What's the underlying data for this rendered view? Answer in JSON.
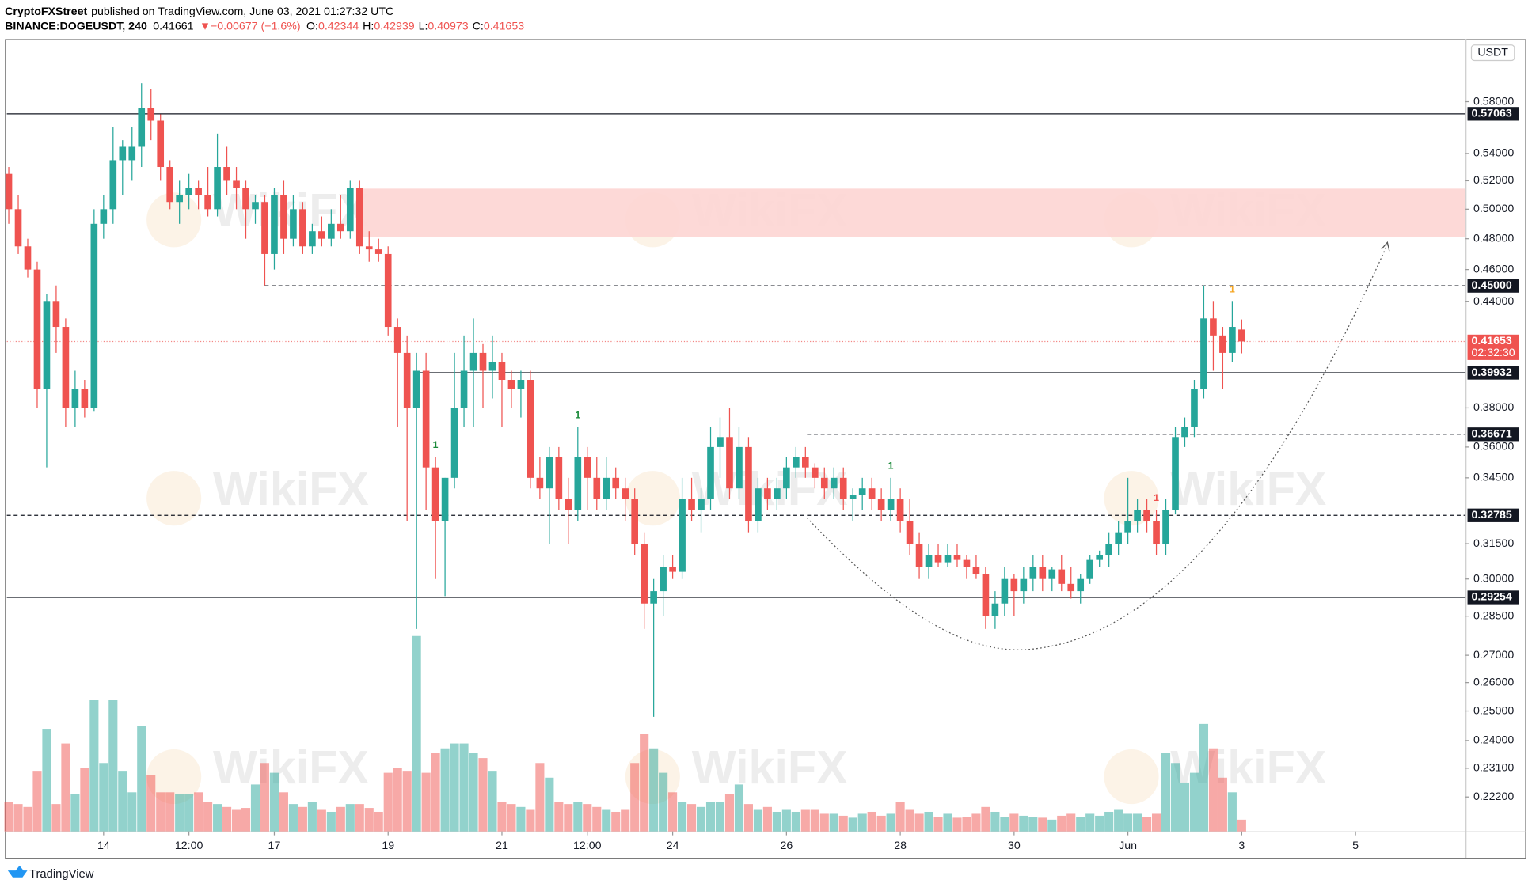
{
  "header": {
    "author": "CryptoFXStreet",
    "published": "published on TradingView.com, June 03, 2021 01:27:32 UTC",
    "symbol": "BINANCE:DOGEUSDT, 240",
    "last": "0.41661",
    "change": "▼−0.00677 (−1.6%)",
    "ohlc": [
      {
        "label": "O:",
        "value": "0.42344"
      },
      {
        "label": "H:",
        "value": "0.42939"
      },
      {
        "label": "L:",
        "value": "0.40973"
      },
      {
        "label": "C:",
        "value": "0.41653"
      }
    ]
  },
  "footer": {
    "brand": "TradingView"
  },
  "watermark": "WikiFX",
  "chart_data": {
    "type": "candlestick",
    "currency": "USDT",
    "log_scale": true,
    "ylim": [
      0.2117,
      0.6307
    ],
    "yticks": [
      {
        "value": 0.58,
        "label": "0.58000"
      },
      {
        "value": 0.54,
        "label": "0.54000"
      },
      {
        "value": 0.52,
        "label": "0.52000"
      },
      {
        "value": 0.5,
        "label": "0.50000"
      },
      {
        "value": 0.48,
        "label": "0.48000"
      },
      {
        "value": 0.46,
        "label": "0.46000"
      },
      {
        "value": 0.44,
        "label": "0.44000"
      },
      {
        "value": 0.38,
        "label": "0.38000"
      },
      {
        "value": 0.36,
        "label": "0.36000"
      },
      {
        "value": 0.345,
        "label": "0.34500"
      },
      {
        "value": 0.315,
        "label": "0.31500"
      },
      {
        "value": 0.3,
        "label": "0.30000"
      },
      {
        "value": 0.285,
        "label": "0.28500"
      },
      {
        "value": 0.27,
        "label": "0.27000"
      },
      {
        "value": 0.26,
        "label": "0.26000"
      },
      {
        "value": 0.25,
        "label": "0.25000"
      },
      {
        "value": 0.24,
        "label": "0.24000"
      },
      {
        "value": 0.231,
        "label": "0.23100"
      },
      {
        "value": 0.222,
        "label": "0.22200"
      }
    ],
    "xlim": [
      -0.2,
      153.6
    ],
    "xticks": [
      {
        "value": 10,
        "label": "14"
      },
      {
        "value": 19,
        "label": "12:00"
      },
      {
        "value": 28,
        "label": "17"
      },
      {
        "value": 40,
        "label": "19"
      },
      {
        "value": 52,
        "label": "21"
      },
      {
        "value": 61,
        "label": "12:00"
      },
      {
        "value": 70,
        "label": "24"
      },
      {
        "value": 82,
        "label": "26"
      },
      {
        "value": 94,
        "label": "28"
      },
      {
        "value": 106,
        "label": "30"
      },
      {
        "value": 118,
        "label": "Jun"
      },
      {
        "value": 130,
        "label": "3"
      },
      {
        "value": 142,
        "label": "5"
      }
    ],
    "up_color": "#26a69a",
    "down_color": "#ef5350",
    "open": [
      0.525,
      0.5,
      0.475,
      0.46,
      0.39,
      0.44,
      0.425,
      0.38,
      0.39,
      0.38,
      0.49,
      0.5,
      0.535,
      0.535,
      0.545,
      0.575,
      0.565,
      0.53,
      0.505,
      0.51,
      0.515,
      0.51,
      0.5,
      0.53,
      0.52,
      0.515,
      0.5,
      0.505,
      0.47,
      0.51,
      0.48,
      0.5,
      0.475,
      0.485,
      0.48,
      0.49,
      0.485,
      0.515,
      0.475,
      0.473,
      0.47,
      0.425,
      0.41,
      0.38,
      0.4,
      0.35,
      0.325,
      0.345,
      0.38,
      0.4,
      0.41,
      0.4,
      0.405,
      0.395,
      0.39,
      0.395,
      0.345,
      0.34,
      0.355,
      0.335,
      0.33,
      0.355,
      0.345,
      0.335,
      0.345,
      0.34,
      0.335,
      0.315,
      0.29,
      0.295,
      0.305,
      0.303,
      0.335,
      0.33,
      0.335,
      0.36,
      0.365,
      0.34,
      0.36,
      0.325,
      0.34,
      0.335,
      0.34,
      0.35,
      0.355,
      0.35,
      0.345,
      0.34,
      0.345,
      0.335,
      0.337,
      0.34,
      0.335,
      0.33,
      0.335,
      0.325,
      0.315,
      0.305,
      0.31,
      0.307,
      0.31,
      0.308,
      0.305,
      0.302,
      0.285,
      0.29,
      0.3,
      0.295,
      0.3,
      0.305,
      0.3,
      0.304,
      0.298,
      0.295,
      0.3,
      0.308,
      0.31,
      0.315,
      0.32,
      0.325,
      0.33,
      0.325,
      0.315,
      0.33,
      0.365,
      0.37,
      0.39,
      0.43,
      0.42,
      0.41,
      0.42344
    ],
    "high": [
      0.53,
      0.51,
      0.48,
      0.465,
      0.445,
      0.45,
      0.43,
      0.4,
      0.395,
      0.5,
      0.51,
      0.56,
      0.55,
      0.56,
      0.595,
      0.59,
      0.57,
      0.535,
      0.52,
      0.525,
      0.52,
      0.53,
      0.555,
      0.545,
      0.53,
      0.52,
      0.51,
      0.51,
      0.515,
      0.52,
      0.51,
      0.505,
      0.49,
      0.495,
      0.5,
      0.51,
      0.52,
      0.52,
      0.485,
      0.48,
      0.475,
      0.43,
      0.42,
      0.41,
      0.41,
      0.355,
      0.345,
      0.41,
      0.42,
      0.43,
      0.415,
      0.42,
      0.41,
      0.4,
      0.4,
      0.4,
      0.355,
      0.36,
      0.36,
      0.345,
      0.37,
      0.36,
      0.355,
      0.355,
      0.35,
      0.345,
      0.34,
      0.32,
      0.3,
      0.31,
      0.31,
      0.345,
      0.345,
      0.34,
      0.37,
      0.375,
      0.38,
      0.37,
      0.365,
      0.345,
      0.345,
      0.345,
      0.355,
      0.36,
      0.36,
      0.352,
      0.35,
      0.35,
      0.35,
      0.34,
      0.345,
      0.345,
      0.34,
      0.345,
      0.34,
      0.335,
      0.32,
      0.315,
      0.315,
      0.315,
      0.315,
      0.31,
      0.31,
      0.305,
      0.295,
      0.305,
      0.302,
      0.305,
      0.31,
      0.31,
      0.305,
      0.31,
      0.305,
      0.302,
      0.31,
      0.312,
      0.32,
      0.325,
      0.345,
      0.335,
      0.335,
      0.33,
      0.335,
      0.37,
      0.375,
      0.395,
      0.45,
      0.44,
      0.425,
      0.44,
      0.42939
    ],
    "low": [
      0.49,
      0.47,
      0.455,
      0.38,
      0.35,
      0.41,
      0.37,
      0.37,
      0.375,
      0.378,
      0.48,
      0.49,
      0.51,
      0.52,
      0.53,
      0.55,
      0.52,
      0.5,
      0.49,
      0.5,
      0.5,
      0.495,
      0.495,
      0.51,
      0.5,
      0.48,
      0.49,
      0.45,
      0.46,
      0.47,
      0.475,
      0.47,
      0.47,
      0.475,
      0.475,
      0.48,
      0.48,
      0.47,
      0.465,
      0.465,
      0.42,
      0.37,
      0.325,
      0.28,
      0.33,
      0.3,
      0.293,
      0.34,
      0.37,
      0.37,
      0.38,
      0.385,
      0.37,
      0.38,
      0.375,
      0.34,
      0.335,
      0.315,
      0.33,
      0.315,
      0.325,
      0.33,
      0.33,
      0.33,
      0.335,
      0.325,
      0.31,
      0.28,
      0.248,
      0.285,
      0.3,
      0.3,
      0.325,
      0.32,
      0.33,
      0.345,
      0.335,
      0.335,
      0.32,
      0.32,
      0.33,
      0.33,
      0.335,
      0.345,
      0.345,
      0.34,
      0.335,
      0.335,
      0.33,
      0.325,
      0.33,
      0.33,
      0.325,
      0.325,
      0.32,
      0.31,
      0.3,
      0.3,
      0.305,
      0.305,
      0.305,
      0.3,
      0.3,
      0.28,
      0.28,
      0.285,
      0.285,
      0.29,
      0.295,
      0.295,
      0.295,
      0.295,
      0.292,
      0.29,
      0.298,
      0.305,
      0.305,
      0.31,
      0.315,
      0.32,
      0.32,
      0.31,
      0.31,
      0.328,
      0.36,
      0.365,
      0.385,
      0.4,
      0.39,
      0.405,
      0.40973
    ],
    "close": [
      0.5,
      0.475,
      0.46,
      0.39,
      0.44,
      0.425,
      0.38,
      0.39,
      0.38,
      0.49,
      0.5,
      0.535,
      0.545,
      0.545,
      0.575,
      0.565,
      0.53,
      0.505,
      0.51,
      0.515,
      0.51,
      0.5,
      0.53,
      0.52,
      0.515,
      0.5,
      0.505,
      0.47,
      0.51,
      0.48,
      0.5,
      0.475,
      0.485,
      0.48,
      0.49,
      0.485,
      0.515,
      0.475,
      0.473,
      0.47,
      0.425,
      0.41,
      0.38,
      0.4,
      0.35,
      0.325,
      0.345,
      0.38,
      0.4,
      0.41,
      0.4,
      0.405,
      0.395,
      0.39,
      0.395,
      0.345,
      0.34,
      0.355,
      0.335,
      0.33,
      0.355,
      0.345,
      0.335,
      0.345,
      0.34,
      0.335,
      0.315,
      0.29,
      0.295,
      0.305,
      0.303,
      0.335,
      0.33,
      0.335,
      0.36,
      0.365,
      0.34,
      0.36,
      0.325,
      0.34,
      0.335,
      0.34,
      0.35,
      0.355,
      0.35,
      0.345,
      0.34,
      0.345,
      0.335,
      0.337,
      0.34,
      0.335,
      0.33,
      0.335,
      0.325,
      0.315,
      0.305,
      0.31,
      0.307,
      0.31,
      0.308,
      0.305,
      0.302,
      0.285,
      0.29,
      0.3,
      0.295,
      0.3,
      0.305,
      0.3,
      0.304,
      0.298,
      0.295,
      0.3,
      0.308,
      0.31,
      0.315,
      0.32,
      0.325,
      0.33,
      0.325,
      0.315,
      0.33,
      0.365,
      0.37,
      0.39,
      0.43,
      0.42,
      0.41,
      0.425,
      0.41653
    ],
    "volume": [
      30,
      28,
      25,
      62,
      105,
      28,
      90,
      38,
      65,
      135,
      70,
      135,
      62,
      40,
      108,
      58,
      40,
      40,
      38,
      38,
      40,
      30,
      28,
      25,
      22,
      24,
      48,
      70,
      60,
      40,
      28,
      25,
      30,
      22,
      20,
      25,
      28,
      28,
      24,
      20,
      60,
      65,
      62,
      200,
      60,
      80,
      85,
      90,
      90,
      80,
      75,
      62,
      30,
      28,
      25,
      22,
      70,
      55,
      30,
      28,
      30,
      28,
      25,
      22,
      20,
      22,
      70,
      100,
      85,
      60,
      40,
      30,
      28,
      25,
      30,
      30,
      38,
      48,
      28,
      22,
      25,
      20,
      22,
      20,
      22,
      22,
      18,
      18,
      16,
      14,
      18,
      20,
      16,
      18,
      30,
      22,
      18,
      20,
      15,
      18,
      14,
      15,
      18,
      25,
      20,
      15,
      18,
      16,
      15,
      14,
      12,
      16,
      18,
      15,
      18,
      16,
      20,
      22,
      18,
      18,
      15,
      18,
      80,
      70,
      50,
      60,
      110,
      85,
      55,
      40,
      12
    ],
    "zone": [
      0.481,
      0.5144
    ],
    "zone_color": "#fdd5d3",
    "levels": [
      {
        "value": 0.57063,
        "label": "0.57063",
        "style": "solid"
      },
      {
        "value": 0.45,
        "label": "0.45000",
        "style": "dashed"
      },
      {
        "value": 0.39932,
        "label": "0.39932",
        "style": "solid"
      },
      {
        "value": 0.36671,
        "label": "0.36671",
        "style": "dashed"
      },
      {
        "value": 0.32785,
        "label": "0.32785",
        "style": "dashed"
      },
      {
        "value": 0.29254,
        "label": "0.29254",
        "style": "solid"
      }
    ],
    "current_price": {
      "value": 0.41653,
      "label": "0.41653",
      "countdown": "02:32:30",
      "color": "#ef5350"
    },
    "markers": [
      {
        "index": 45,
        "label": "1",
        "color": "#1b8a3a"
      },
      {
        "index": 60,
        "label": "1",
        "color": "#1b8a3a"
      },
      {
        "index": 93,
        "label": "1",
        "color": "#1b8a3a"
      },
      {
        "index": 121,
        "label": "1",
        "color": "#ef5350"
      },
      {
        "index": 129,
        "label": "1",
        "color": "#f5a623"
      }
    ]
  }
}
